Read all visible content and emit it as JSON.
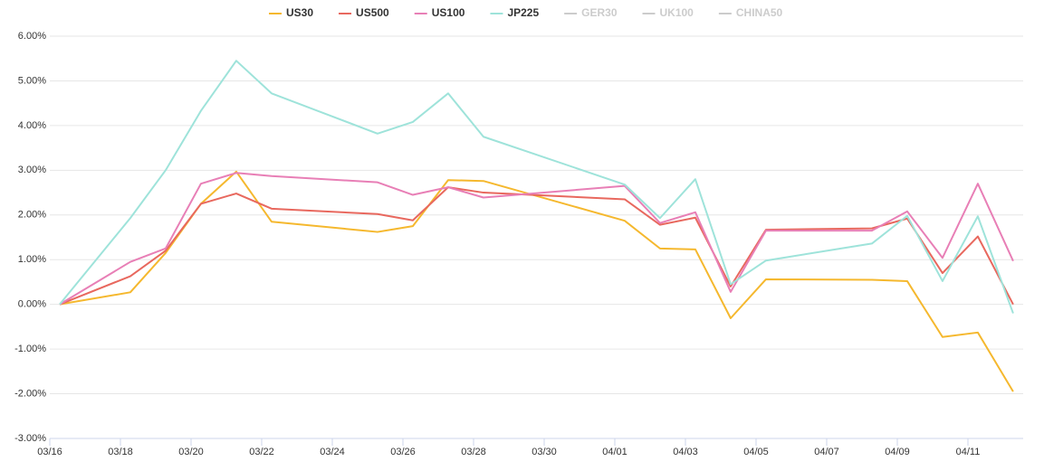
{
  "chart_data": {
    "type": "line",
    "x": [
      "03/16",
      "03/18",
      "03/19",
      "03/20",
      "03/21",
      "03/22",
      "03/25",
      "03/26",
      "03/27",
      "03/28",
      "04/01",
      "04/02",
      "04/03",
      "04/04",
      "04/05",
      "04/08",
      "04/09",
      "04/10",
      "04/11",
      "04/12"
    ],
    "series": [
      {
        "name": "US30",
        "color": "#f5b82e",
        "values": [
          0,
          0.27,
          1.15,
          2.25,
          2.97,
          1.85,
          1.62,
          1.75,
          2.78,
          2.76,
          1.87,
          1.25,
          1.23,
          -0.31,
          0.56,
          0.55,
          0.52,
          -0.73,
          -0.63,
          -1.95
        ]
      },
      {
        "name": "US500",
        "color": "#e8685e",
        "values": [
          0,
          0.63,
          1.2,
          2.25,
          2.48,
          2.14,
          2.02,
          1.88,
          2.62,
          2.5,
          2.35,
          1.78,
          1.94,
          0.4,
          1.67,
          1.7,
          1.92,
          0.7,
          1.52,
          0
        ]
      },
      {
        "name": "US100",
        "color": "#e87fb6",
        "values": [
          0,
          0.95,
          1.25,
          2.7,
          2.94,
          2.87,
          2.73,
          2.45,
          2.62,
          2.39,
          2.65,
          1.82,
          2.06,
          0.28,
          1.65,
          1.65,
          2.08,
          1.04,
          2.7,
          0.97
        ]
      },
      {
        "name": "JP225",
        "color": "#9ee3da",
        "values": [
          0,
          1.93,
          3.0,
          4.33,
          5.45,
          4.72,
          3.82,
          4.08,
          4.72,
          3.75,
          2.68,
          1.93,
          2.8,
          0.45,
          0.98,
          1.36,
          1.98,
          0.52,
          1.97,
          -0.2
        ]
      },
      {
        "name": "GER30",
        "color": "#cccccc",
        "visible": false
      },
      {
        "name": "UK100",
        "color": "#cccccc",
        "visible": false
      },
      {
        "name": "CHINA50",
        "color": "#cccccc",
        "visible": false
      }
    ],
    "xlim": [
      "03/16",
      "04/12"
    ],
    "xticks": [
      "03/16",
      "03/18",
      "03/20",
      "03/22",
      "03/24",
      "03/26",
      "03/28",
      "03/30",
      "04/01",
      "04/03",
      "04/05",
      "04/07",
      "04/09",
      "04/11"
    ],
    "ylim": [
      -3,
      6
    ],
    "yticks": [
      {
        "value": -3,
        "label": "-3.00%"
      },
      {
        "value": -2,
        "label": "-2.00%"
      },
      {
        "value": -1,
        "label": "-1.00%"
      },
      {
        "value": 0,
        "label": "0.00%"
      },
      {
        "value": 1,
        "label": "1.00%"
      },
      {
        "value": 2,
        "label": "2.00%"
      },
      {
        "value": 3,
        "label": "3.00%"
      },
      {
        "value": 4,
        "label": "4.00%"
      },
      {
        "value": 5,
        "label": "5.00%"
      },
      {
        "value": 6,
        "label": "6.00%"
      }
    ],
    "grid": true,
    "legend": "top"
  }
}
